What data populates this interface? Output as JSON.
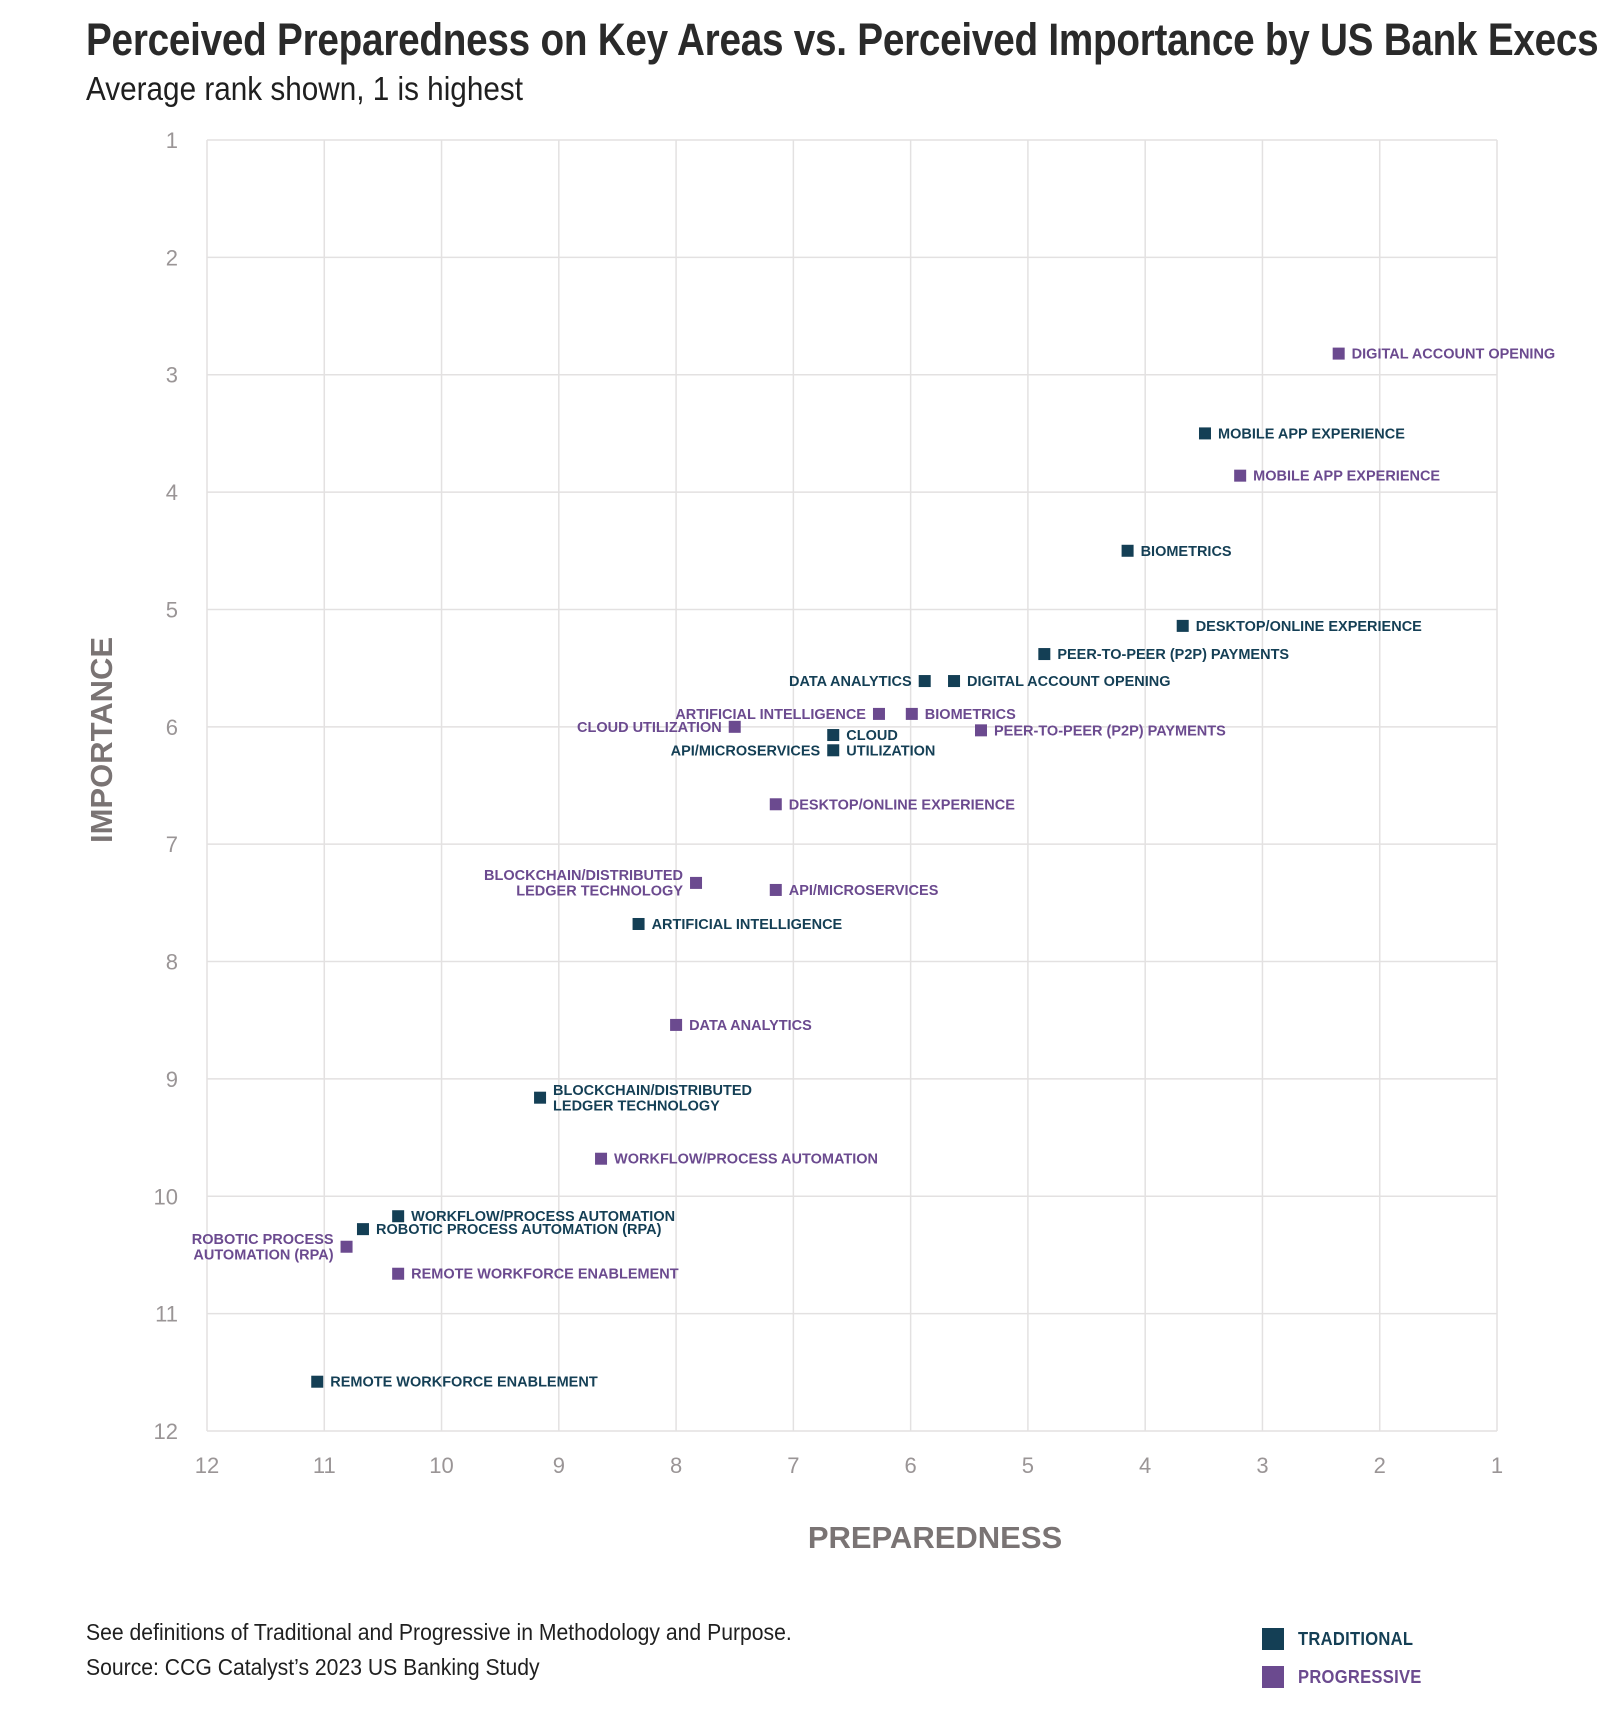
{
  "header": {
    "title": "Perceived Preparedness on Key Areas vs. Perceived Importance by US Bank Execs",
    "subtitle": "Average rank shown, 1 is highest"
  },
  "footer": {
    "note": "See definitions of Traditional and Progressive in Methodology and Purpose.",
    "source": "Source: CCG Catalyst’s 2023 US Banking Study"
  },
  "legend": {
    "items": [
      {
        "label": "TRADITIONAL",
        "color": "#143f55"
      },
      {
        "label": "PROGRESSIVE",
        "color": "#6b4a8f"
      }
    ]
  },
  "chart_data": {
    "type": "scatter",
    "title": "Perceived Preparedness on Key Areas vs. Perceived Importance by US Bank Execs",
    "subtitle": "Average rank shown, 1 is highest",
    "xlabel": "PREPAREDNESS",
    "ylabel": "IMPORTANCE",
    "xlim": [
      12,
      1
    ],
    "ylim": [
      12,
      1
    ],
    "x_reversed": true,
    "y_reversed": true,
    "x_ticks": [
      "12",
      "11",
      "10",
      "9",
      "8",
      "7",
      "6",
      "5",
      "4",
      "3",
      "2",
      "1"
    ],
    "y_ticks": [
      "1",
      "2",
      "3",
      "4",
      "5",
      "6",
      "7",
      "8",
      "9",
      "10",
      "11",
      "12"
    ],
    "grid": true,
    "legend_position": "bottom-right",
    "series": [
      {
        "name": "TRADITIONAL",
        "color": "#143f55",
        "points": [
          {
            "label": "MOBILE APP EXPERIENCE",
            "x": 3.49,
            "y": 3.5
          },
          {
            "label": "BIOMETRICS",
            "x": 4.15,
            "y": 4.5
          },
          {
            "label": "DESKTOP/ONLINE EXPERIENCE",
            "x": 3.68,
            "y": 5.14
          },
          {
            "label": "PEER-TO-PEER (P2P) PAYMENTS",
            "x": 4.86,
            "y": 5.38
          },
          {
            "label": "DATA ANALYTICS",
            "x": 5.88,
            "y": 5.61
          },
          {
            "label": "DIGITAL ACCOUNT OPENING",
            "x": 5.63,
            "y": 5.61
          },
          {
            "label": "CLOUD UTILIZATION",
            "x": 6.66,
            "y": 6.07
          },
          {
            "label": "API/MICROSERVICES",
            "x": 6.66,
            "y": 6.2
          },
          {
            "label": "ARTIFICIAL INTELLIGENCE",
            "x": 8.32,
            "y": 7.68
          },
          {
            "label": "BLOCKCHAIN/DISTRIBUTED LEDGER TECHNOLOGY",
            "x": 9.16,
            "y": 9.16
          },
          {
            "label": "WORKFLOW/PROCESS AUTOMATION",
            "x": 10.37,
            "y": 10.17
          },
          {
            "label": "ROBOTIC PROCESS AUTOMATION (RPA)",
            "x": 10.67,
            "y": 10.28
          },
          {
            "label": "REMOTE WORKFORCE ENABLEMENT",
            "x": 11.06,
            "y": 11.58
          }
        ]
      },
      {
        "name": "PROGRESSIVE",
        "color": "#6b4a8f",
        "points": [
          {
            "label": "DIGITAL ACCOUNT OPENING",
            "x": 2.35,
            "y": 2.82
          },
          {
            "label": "MOBILE APP EXPERIENCE",
            "x": 3.19,
            "y": 3.86
          },
          {
            "label": "ARTIFICIAL INTELLIGENCE",
            "x": 6.27,
            "y": 5.89
          },
          {
            "label": "BIOMETRICS",
            "x": 5.99,
            "y": 5.89
          },
          {
            "label": "CLOUD UTILIZATION",
            "x": 7.5,
            "y": 6.0
          },
          {
            "label": "PEER-TO-PEER (P2P) PAYMENTS",
            "x": 5.4,
            "y": 6.03
          },
          {
            "label": "DESKTOP/ONLINE EXPERIENCE",
            "x": 7.15,
            "y": 6.66
          },
          {
            "label": "BLOCKCHAIN/DISTRIBUTED LEDGER TECHNOLOGY",
            "x": 7.83,
            "y": 7.33
          },
          {
            "label": "API/MICROSERVICES",
            "x": 7.15,
            "y": 7.39
          },
          {
            "label": "DATA ANALYTICS",
            "x": 8.0,
            "y": 8.54
          },
          {
            "label": "WORKFLOW/PROCESS AUTOMATION",
            "x": 8.64,
            "y": 9.68
          },
          {
            "label": "ROBOTIC PROCESS AUTOMATION (RPA)",
            "x": 10.81,
            "y": 10.43
          },
          {
            "label": "REMOTE WORKFORCE ENABLEMENT",
            "x": 10.37,
            "y": 10.66
          }
        ]
      }
    ]
  }
}
